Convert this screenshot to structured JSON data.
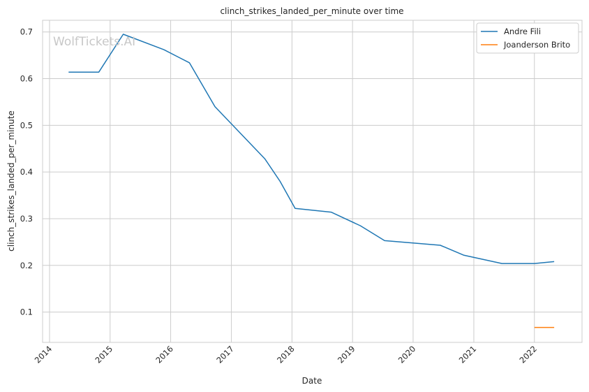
{
  "chart_data": {
    "type": "line",
    "title": "clinch_strikes_landed_per_minute over time",
    "xlabel": "Date",
    "ylabel": "clinch_strikes_landed_per_minute",
    "watermark": "WolfTickets.AI",
    "x_ticks": [
      "2014",
      "2015",
      "2016",
      "2017",
      "2018",
      "2019",
      "2020",
      "2021",
      "2022"
    ],
    "y_ticks": [
      "0.1",
      "0.2",
      "0.3",
      "0.4",
      "0.5",
      "0.6",
      "0.7"
    ],
    "xlim": [
      "2013-11-20",
      "2022-10-15"
    ],
    "ylim": [
      0.035,
      0.725
    ],
    "grid": true,
    "legend_position": "top-right",
    "series": [
      {
        "name": "Andre Fili",
        "color": "#1f77b4",
        "points": [
          {
            "x": "2014-04-26",
            "y": 0.614
          },
          {
            "x": "2014-10-25",
            "y": 0.614
          },
          {
            "x": "2015-03-21",
            "y": 0.695
          },
          {
            "x": "2015-11-21",
            "y": 0.662
          },
          {
            "x": "2016-04-23",
            "y": 0.634
          },
          {
            "x": "2016-09-24",
            "y": 0.54
          },
          {
            "x": "2017-07-22",
            "y": 0.428
          },
          {
            "x": "2017-10-21",
            "y": 0.38
          },
          {
            "x": "2018-01-20",
            "y": 0.322
          },
          {
            "x": "2018-08-25",
            "y": 0.314
          },
          {
            "x": "2019-02-17",
            "y": 0.285
          },
          {
            "x": "2019-07-13",
            "y": 0.253
          },
          {
            "x": "2020-06-13",
            "y": 0.243
          },
          {
            "x": "2020-10-31",
            "y": 0.222
          },
          {
            "x": "2021-06-19",
            "y": 0.204
          },
          {
            "x": "2022-01-01",
            "y": 0.204
          },
          {
            "x": "2022-04-30",
            "y": 0.208
          }
        ]
      },
      {
        "name": "Joanderson Brito",
        "color": "#ff7f0e",
        "points": [
          {
            "x": "2022-01-01",
            "y": 0.067
          },
          {
            "x": "2022-04-30",
            "y": 0.067
          }
        ]
      }
    ]
  }
}
